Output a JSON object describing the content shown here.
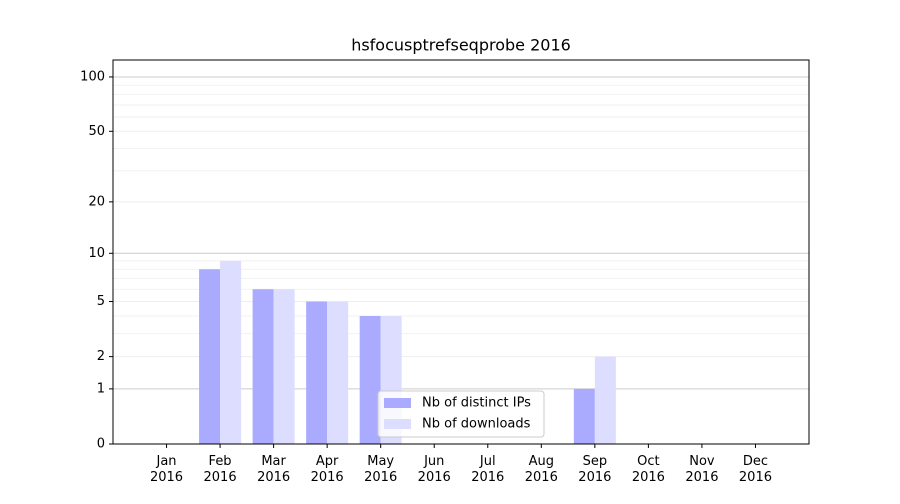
{
  "chart_data": {
    "type": "bar",
    "title": "hsfocusptrefseqprobe 2016",
    "categories": [
      "Jan 2016",
      "Feb 2016",
      "Mar 2016",
      "Apr 2016",
      "May 2016",
      "Jun 2016",
      "Jul 2016",
      "Aug 2016",
      "Sep 2016",
      "Oct 2016",
      "Nov 2016",
      "Dec 2016"
    ],
    "series": [
      {
        "name": "Nb of distinct IPs",
        "color": "#aaaaff",
        "values": [
          0,
          8,
          6,
          5,
          4,
          0,
          0,
          0,
          1,
          0,
          0,
          0
        ]
      },
      {
        "name": "Nb of downloads",
        "color": "#ddddff",
        "values": [
          0,
          9,
          6,
          5,
          4,
          0,
          0,
          0,
          2,
          0,
          0,
          0
        ]
      }
    ],
    "yscale": "log1p",
    "ylim": [
      0,
      124
    ],
    "yticks": [
      0,
      1,
      2,
      5,
      10,
      20,
      50,
      100
    ],
    "minor_yticks": [
      3,
      4,
      6,
      7,
      8,
      9,
      30,
      40,
      60,
      70,
      80,
      90
    ],
    "grid": true,
    "legend": "lower center"
  }
}
